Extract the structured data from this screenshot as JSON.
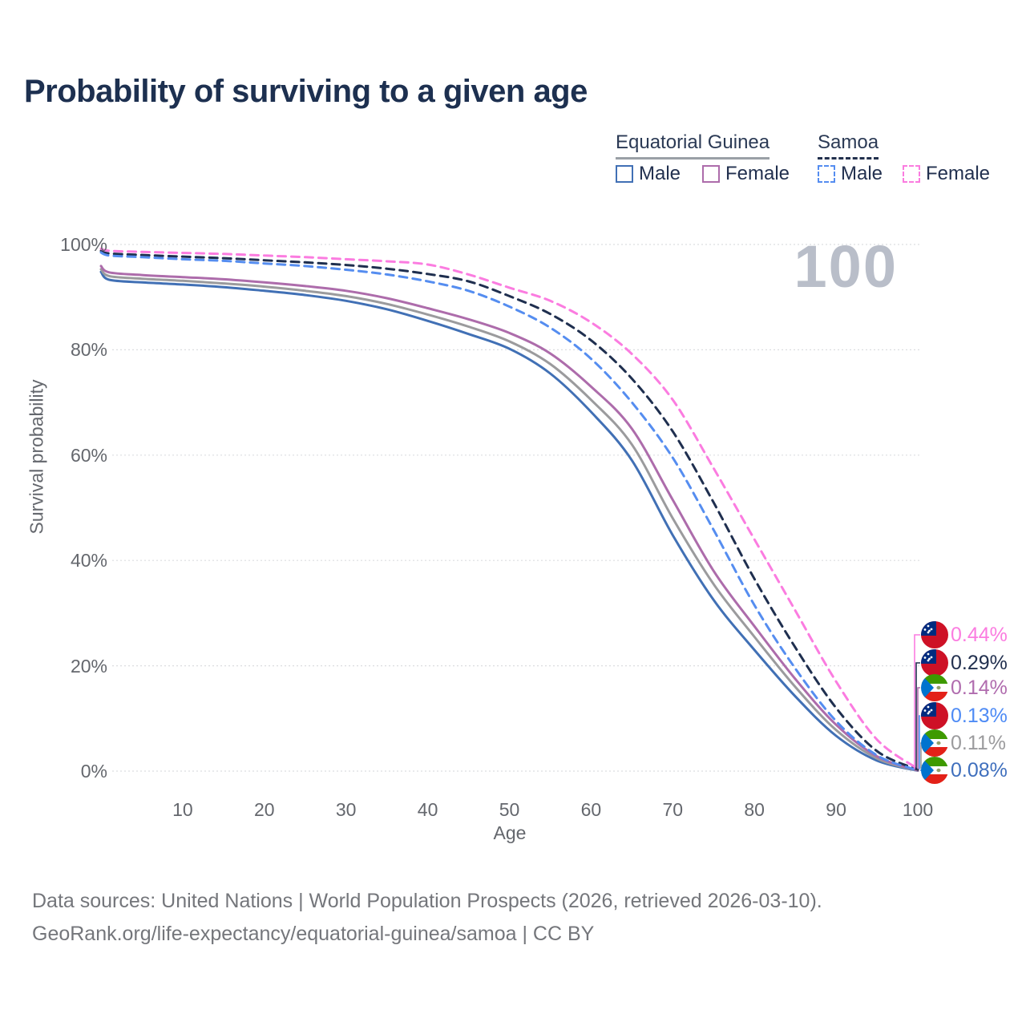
{
  "title": "Probability of surviving to a given age",
  "watermark_age": "100",
  "legend": {
    "groups": [
      {
        "label": "Equatorial Guinea",
        "line_style": "solid",
        "line_color": "#9aa0a6"
      },
      {
        "label": "Samoa",
        "line_style": "dashed",
        "line_color": "#22304d"
      }
    ],
    "items": [
      {
        "label": "Male",
        "box_color": "#4170b5",
        "box_style": "solid"
      },
      {
        "label": "Female",
        "box_color": "#ad6cab",
        "box_style": "solid"
      },
      {
        "label": "Male",
        "box_color": "#558df0",
        "box_style": "dashed"
      },
      {
        "label": "Female",
        "box_color": "#fb7ce0",
        "box_style": "dashed"
      }
    ]
  },
  "chart_data": {
    "type": "line",
    "title": "Probability of surviving to a given age",
    "xlabel": "Age",
    "ylabel": "Survival probability",
    "xlim": [
      0,
      100
    ],
    "ylim": [
      0,
      100
    ],
    "x_ticks": [
      10,
      20,
      30,
      40,
      50,
      60,
      70,
      80,
      90,
      100
    ],
    "y_ticks": [
      0,
      20,
      40,
      60,
      80,
      100
    ],
    "y_tick_suffix": "%",
    "grid": true,
    "series": [
      {
        "name": "Equatorial Guinea Male",
        "color": "#4170b5",
        "dash": "solid",
        "points": [
          [
            0,
            94.8
          ],
          [
            1,
            93.3
          ],
          [
            5,
            92.8
          ],
          [
            10,
            92.4
          ],
          [
            15,
            91.9
          ],
          [
            20,
            91.2
          ],
          [
            25,
            90.4
          ],
          [
            30,
            89.3
          ],
          [
            35,
            87.7
          ],
          [
            40,
            85.5
          ],
          [
            45,
            83.0
          ],
          [
            50,
            80.2
          ],
          [
            55,
            75.5
          ],
          [
            60,
            68.2
          ],
          [
            65,
            59.0
          ],
          [
            70,
            44.8
          ],
          [
            75,
            32.5
          ],
          [
            80,
            23.0
          ],
          [
            85,
            14.2
          ],
          [
            90,
            6.7
          ],
          [
            95,
            2.0
          ],
          [
            100,
            0.08
          ]
        ]
      },
      {
        "name": "Equatorial Guinea",
        "color": "#9b9b9d",
        "dash": "solid",
        "points": [
          [
            0,
            95.3
          ],
          [
            1,
            94.0
          ],
          [
            5,
            93.5
          ],
          [
            10,
            93.1
          ],
          [
            15,
            92.6
          ],
          [
            20,
            92.0
          ],
          [
            25,
            91.2
          ],
          [
            30,
            90.2
          ],
          [
            35,
            88.7
          ],
          [
            40,
            86.7
          ],
          [
            45,
            84.4
          ],
          [
            50,
            81.6
          ],
          [
            55,
            77.3
          ],
          [
            60,
            70.5
          ],
          [
            65,
            62.0
          ],
          [
            70,
            48.0
          ],
          [
            75,
            35.5
          ],
          [
            80,
            25.5
          ],
          [
            85,
            16.0
          ],
          [
            90,
            7.8
          ],
          [
            95,
            2.4
          ],
          [
            100,
            0.11
          ]
        ]
      },
      {
        "name": "Equatorial Guinea Female",
        "color": "#ad6cab",
        "dash": "solid",
        "points": [
          [
            0,
            95.9
          ],
          [
            1,
            94.7
          ],
          [
            5,
            94.2
          ],
          [
            10,
            93.8
          ],
          [
            15,
            93.4
          ],
          [
            20,
            92.8
          ],
          [
            25,
            92.1
          ],
          [
            30,
            91.2
          ],
          [
            35,
            89.8
          ],
          [
            40,
            87.9
          ],
          [
            45,
            85.8
          ],
          [
            50,
            83.2
          ],
          [
            55,
            79.3
          ],
          [
            60,
            73.0
          ],
          [
            65,
            65.0
          ],
          [
            70,
            51.5
          ],
          [
            75,
            38.0
          ],
          [
            80,
            27.5
          ],
          [
            85,
            17.5
          ],
          [
            90,
            8.8
          ],
          [
            95,
            2.8
          ],
          [
            100,
            0.14
          ]
        ]
      },
      {
        "name": "Samoa",
        "color": "#1f2f4f",
        "dash": "dashed",
        "points": [
          [
            0,
            98.8
          ],
          [
            1,
            98.3
          ],
          [
            5,
            98.0
          ],
          [
            10,
            97.7
          ],
          [
            15,
            97.4
          ],
          [
            20,
            97.0
          ],
          [
            25,
            96.6
          ],
          [
            30,
            96.1
          ],
          [
            35,
            95.4
          ],
          [
            40,
            94.4
          ],
          [
            45,
            93.0
          ],
          [
            50,
            90.2
          ],
          [
            55,
            86.8
          ],
          [
            60,
            81.8
          ],
          [
            65,
            74.5
          ],
          [
            70,
            64.5
          ],
          [
            75,
            51.0
          ],
          [
            80,
            36.5
          ],
          [
            85,
            23.5
          ],
          [
            90,
            12.0
          ],
          [
            95,
            3.8
          ],
          [
            100,
            0.29
          ]
        ]
      },
      {
        "name": "Samoa Male",
        "color": "#558df0",
        "dash": "dashed",
        "points": [
          [
            0,
            98.5
          ],
          [
            1,
            97.9
          ],
          [
            5,
            97.6
          ],
          [
            10,
            97.2
          ],
          [
            15,
            96.9
          ],
          [
            20,
            96.4
          ],
          [
            25,
            95.9
          ],
          [
            30,
            95.2
          ],
          [
            35,
            94.3
          ],
          [
            40,
            93.0
          ],
          [
            45,
            91.2
          ],
          [
            50,
            88.2
          ],
          [
            55,
            84.2
          ],
          [
            60,
            78.3
          ],
          [
            65,
            70.0
          ],
          [
            70,
            59.5
          ],
          [
            75,
            45.8
          ],
          [
            80,
            31.5
          ],
          [
            85,
            19.5
          ],
          [
            90,
            9.5
          ],
          [
            95,
            3.0
          ],
          [
            100,
            0.13
          ]
        ]
      },
      {
        "name": "Samoa Female",
        "color": "#fb7ce0",
        "dash": "dashed",
        "points": [
          [
            0,
            99.2
          ],
          [
            1,
            98.8
          ],
          [
            5,
            98.6
          ],
          [
            10,
            98.4
          ],
          [
            15,
            98.2
          ],
          [
            20,
            97.9
          ],
          [
            25,
            97.6
          ],
          [
            30,
            97.2
          ],
          [
            35,
            96.8
          ],
          [
            40,
            96.2
          ],
          [
            45,
            94.3
          ],
          [
            50,
            91.8
          ],
          [
            55,
            89.3
          ],
          [
            60,
            85.2
          ],
          [
            65,
            79.2
          ],
          [
            70,
            70.5
          ],
          [
            75,
            57.5
          ],
          [
            80,
            44.0
          ],
          [
            85,
            30.5
          ],
          [
            90,
            17.0
          ],
          [
            95,
            6.0
          ],
          [
            100,
            0.44
          ]
        ]
      }
    ],
    "end_labels": [
      {
        "value": "0.44%",
        "color": "#fb7ce0",
        "flag": "samoa"
      },
      {
        "value": "0.29%",
        "color": "#22304f",
        "flag": "samoa"
      },
      {
        "value": "0.14%",
        "color": "#b06cae",
        "flag": "equatorial-guinea"
      },
      {
        "value": "0.13%",
        "color": "#4e8bf5",
        "flag": "samoa"
      },
      {
        "value": "0.11%",
        "color": "#9b9b9d",
        "flag": "equatorial-guinea"
      },
      {
        "value": "0.08%",
        "color": "#3f6fbd",
        "flag": "equatorial-guinea"
      }
    ]
  },
  "footer": {
    "line1": "Data sources: United Nations | World Population Prospects (2026, retrieved 2026-03-10).",
    "line2": "GeoRank.org/life-expectancy/equatorial-guinea/samoa | CC BY"
  },
  "colors": {
    "title_text": "#1d3050",
    "axis_text": "#64676d",
    "gridline": "#dcdde0",
    "watermark": "#b9bec9",
    "footer_text": "#74767b"
  }
}
